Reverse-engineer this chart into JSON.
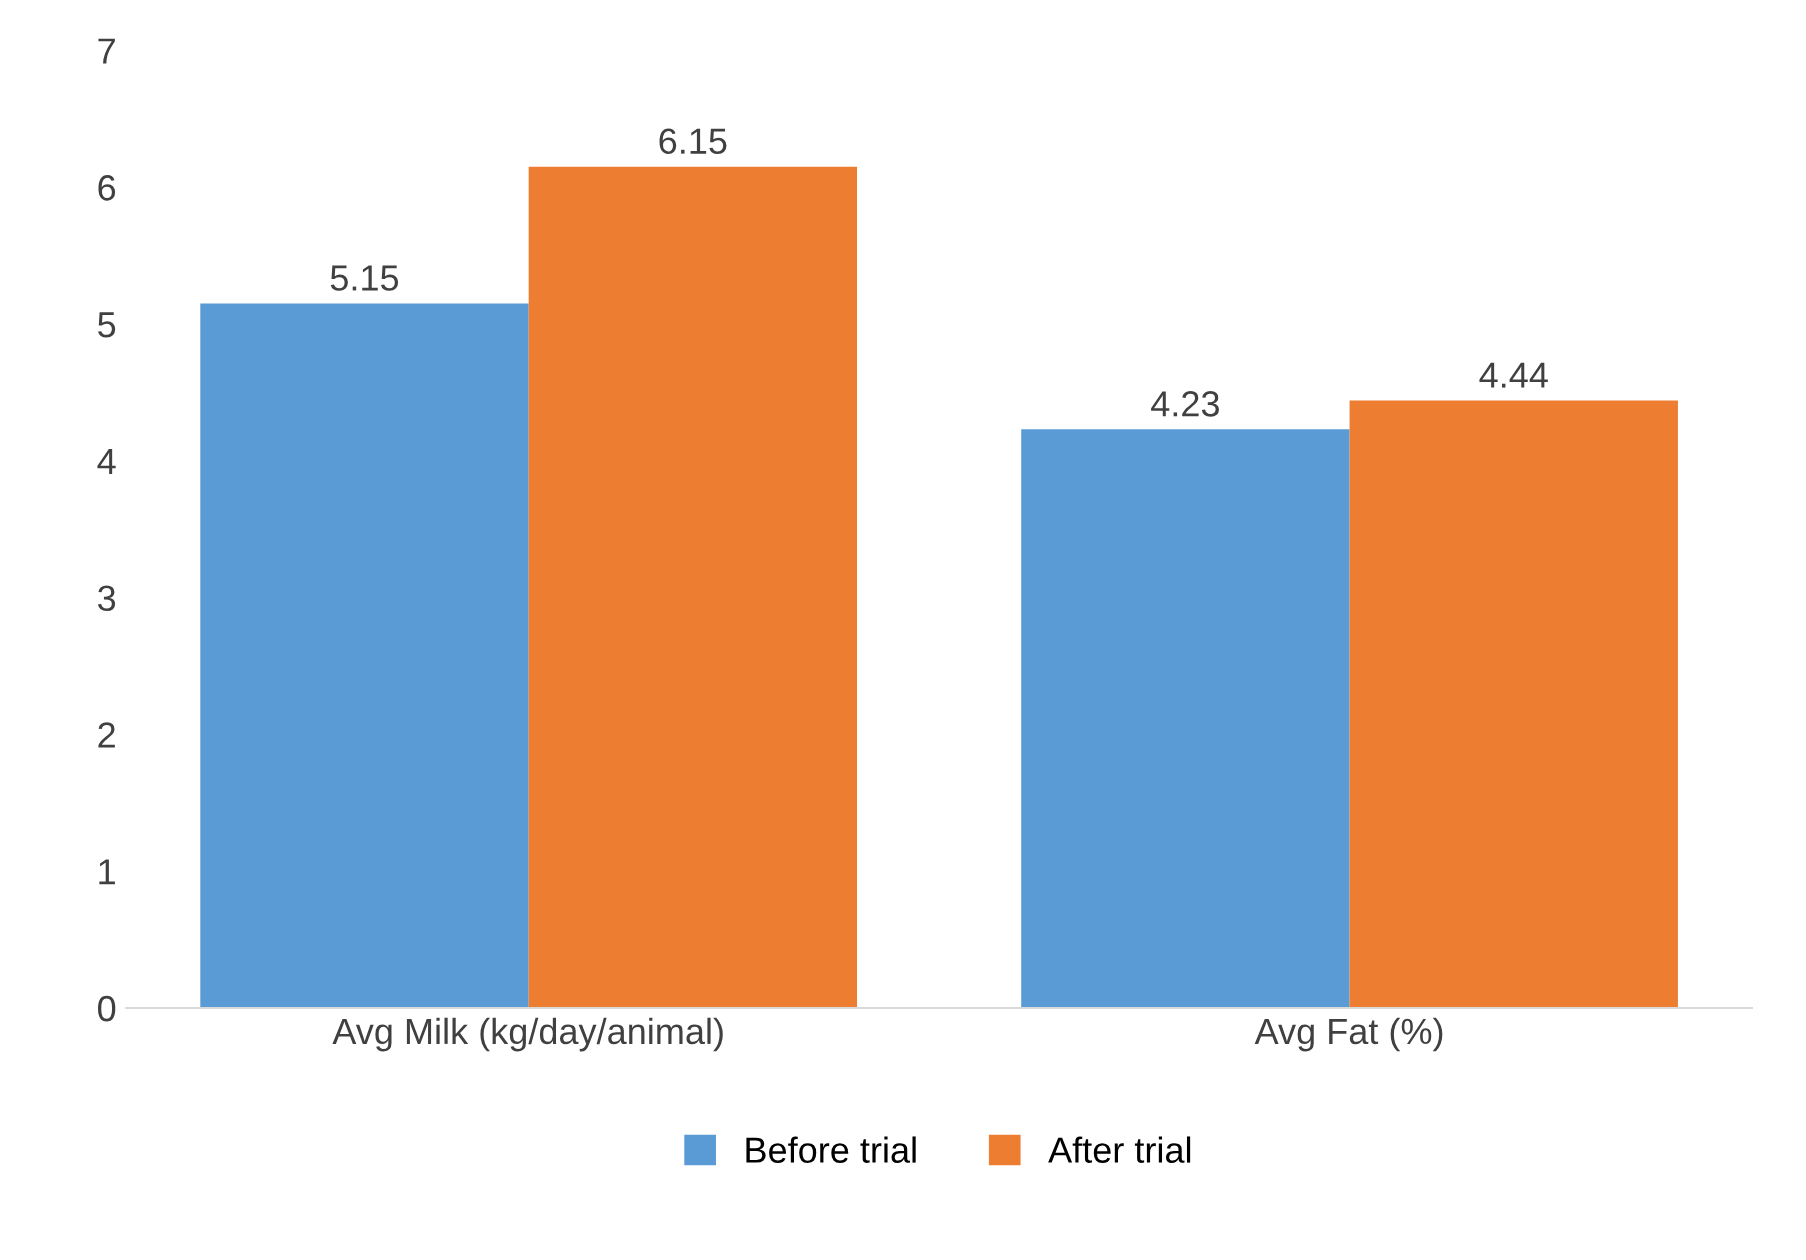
{
  "chart_data": {
    "type": "bar",
    "categories": [
      "Avg Milk (kg/day/animal)",
      "Avg Fat (%)"
    ],
    "series": [
      {
        "name": "Before trial",
        "color": "#5b9bd5",
        "values": [
          5.15,
          4.23
        ]
      },
      {
        "name": "After trial",
        "color": "#ed7d31",
        "values": [
          6.15,
          4.44
        ]
      }
    ],
    "ylim": [
      0,
      7
    ],
    "yticks": [
      0,
      1,
      2,
      3,
      4,
      5,
      6,
      7
    ],
    "grid": false,
    "legend": "bottom",
    "data_labels": true
  }
}
